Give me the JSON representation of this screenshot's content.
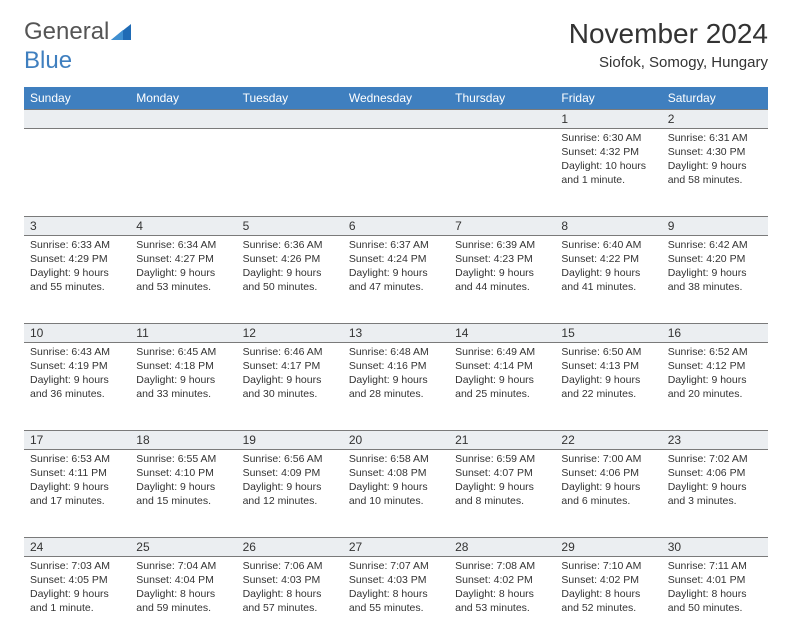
{
  "logo": {
    "line1": "General",
    "line2": "Blue"
  },
  "title": "November 2024",
  "location": "Siofok, Somogy, Hungary",
  "colors": {
    "header_bg": "#3f7fbf",
    "header_text": "#ffffff",
    "daynum_bg": "#ebeef1",
    "border": "#7a7a7a",
    "text": "#333333"
  },
  "weekdays": [
    "Sunday",
    "Monday",
    "Tuesday",
    "Wednesday",
    "Thursday",
    "Friday",
    "Saturday"
  ],
  "weeks": [
    [
      null,
      null,
      null,
      null,
      null,
      {
        "n": "1",
        "sr": "Sunrise: 6:30 AM",
        "ss": "Sunset: 4:32 PM",
        "dl": "Daylight: 10 hours and 1 minute."
      },
      {
        "n": "2",
        "sr": "Sunrise: 6:31 AM",
        "ss": "Sunset: 4:30 PM",
        "dl": "Daylight: 9 hours and 58 minutes."
      }
    ],
    [
      {
        "n": "3",
        "sr": "Sunrise: 6:33 AM",
        "ss": "Sunset: 4:29 PM",
        "dl": "Daylight: 9 hours and 55 minutes."
      },
      {
        "n": "4",
        "sr": "Sunrise: 6:34 AM",
        "ss": "Sunset: 4:27 PM",
        "dl": "Daylight: 9 hours and 53 minutes."
      },
      {
        "n": "5",
        "sr": "Sunrise: 6:36 AM",
        "ss": "Sunset: 4:26 PM",
        "dl": "Daylight: 9 hours and 50 minutes."
      },
      {
        "n": "6",
        "sr": "Sunrise: 6:37 AM",
        "ss": "Sunset: 4:24 PM",
        "dl": "Daylight: 9 hours and 47 minutes."
      },
      {
        "n": "7",
        "sr": "Sunrise: 6:39 AM",
        "ss": "Sunset: 4:23 PM",
        "dl": "Daylight: 9 hours and 44 minutes."
      },
      {
        "n": "8",
        "sr": "Sunrise: 6:40 AM",
        "ss": "Sunset: 4:22 PM",
        "dl": "Daylight: 9 hours and 41 minutes."
      },
      {
        "n": "9",
        "sr": "Sunrise: 6:42 AM",
        "ss": "Sunset: 4:20 PM",
        "dl": "Daylight: 9 hours and 38 minutes."
      }
    ],
    [
      {
        "n": "10",
        "sr": "Sunrise: 6:43 AM",
        "ss": "Sunset: 4:19 PM",
        "dl": "Daylight: 9 hours and 36 minutes."
      },
      {
        "n": "11",
        "sr": "Sunrise: 6:45 AM",
        "ss": "Sunset: 4:18 PM",
        "dl": "Daylight: 9 hours and 33 minutes."
      },
      {
        "n": "12",
        "sr": "Sunrise: 6:46 AM",
        "ss": "Sunset: 4:17 PM",
        "dl": "Daylight: 9 hours and 30 minutes."
      },
      {
        "n": "13",
        "sr": "Sunrise: 6:48 AM",
        "ss": "Sunset: 4:16 PM",
        "dl": "Daylight: 9 hours and 28 minutes."
      },
      {
        "n": "14",
        "sr": "Sunrise: 6:49 AM",
        "ss": "Sunset: 4:14 PM",
        "dl": "Daylight: 9 hours and 25 minutes."
      },
      {
        "n": "15",
        "sr": "Sunrise: 6:50 AM",
        "ss": "Sunset: 4:13 PM",
        "dl": "Daylight: 9 hours and 22 minutes."
      },
      {
        "n": "16",
        "sr": "Sunrise: 6:52 AM",
        "ss": "Sunset: 4:12 PM",
        "dl": "Daylight: 9 hours and 20 minutes."
      }
    ],
    [
      {
        "n": "17",
        "sr": "Sunrise: 6:53 AM",
        "ss": "Sunset: 4:11 PM",
        "dl": "Daylight: 9 hours and 17 minutes."
      },
      {
        "n": "18",
        "sr": "Sunrise: 6:55 AM",
        "ss": "Sunset: 4:10 PM",
        "dl": "Daylight: 9 hours and 15 minutes."
      },
      {
        "n": "19",
        "sr": "Sunrise: 6:56 AM",
        "ss": "Sunset: 4:09 PM",
        "dl": "Daylight: 9 hours and 12 minutes."
      },
      {
        "n": "20",
        "sr": "Sunrise: 6:58 AM",
        "ss": "Sunset: 4:08 PM",
        "dl": "Daylight: 9 hours and 10 minutes."
      },
      {
        "n": "21",
        "sr": "Sunrise: 6:59 AM",
        "ss": "Sunset: 4:07 PM",
        "dl": "Daylight: 9 hours and 8 minutes."
      },
      {
        "n": "22",
        "sr": "Sunrise: 7:00 AM",
        "ss": "Sunset: 4:06 PM",
        "dl": "Daylight: 9 hours and 6 minutes."
      },
      {
        "n": "23",
        "sr": "Sunrise: 7:02 AM",
        "ss": "Sunset: 4:06 PM",
        "dl": "Daylight: 9 hours and 3 minutes."
      }
    ],
    [
      {
        "n": "24",
        "sr": "Sunrise: 7:03 AM",
        "ss": "Sunset: 4:05 PM",
        "dl": "Daylight: 9 hours and 1 minute."
      },
      {
        "n": "25",
        "sr": "Sunrise: 7:04 AM",
        "ss": "Sunset: 4:04 PM",
        "dl": "Daylight: 8 hours and 59 minutes."
      },
      {
        "n": "26",
        "sr": "Sunrise: 7:06 AM",
        "ss": "Sunset: 4:03 PM",
        "dl": "Daylight: 8 hours and 57 minutes."
      },
      {
        "n": "27",
        "sr": "Sunrise: 7:07 AM",
        "ss": "Sunset: 4:03 PM",
        "dl": "Daylight: 8 hours and 55 minutes."
      },
      {
        "n": "28",
        "sr": "Sunrise: 7:08 AM",
        "ss": "Sunset: 4:02 PM",
        "dl": "Daylight: 8 hours and 53 minutes."
      },
      {
        "n": "29",
        "sr": "Sunrise: 7:10 AM",
        "ss": "Sunset: 4:02 PM",
        "dl": "Daylight: 8 hours and 52 minutes."
      },
      {
        "n": "30",
        "sr": "Sunrise: 7:11 AM",
        "ss": "Sunset: 4:01 PM",
        "dl": "Daylight: 8 hours and 50 minutes."
      }
    ]
  ]
}
